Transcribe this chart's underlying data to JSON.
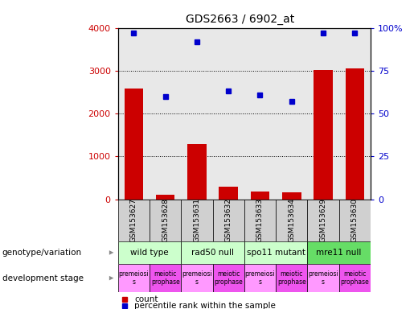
{
  "title": "GDS2663 / 6902_at",
  "samples": [
    "GSM153627",
    "GSM153628",
    "GSM153631",
    "GSM153632",
    "GSM153633",
    "GSM153634",
    "GSM153629",
    "GSM153630"
  ],
  "counts": [
    2580,
    110,
    1290,
    300,
    175,
    155,
    3010,
    3060
  ],
  "percentiles": [
    97,
    60,
    92,
    63,
    61,
    57,
    97,
    97
  ],
  "ylim_left": [
    0,
    4000
  ],
  "ylim_right": [
    0,
    100
  ],
  "yticks_left": [
    0,
    1000,
    2000,
    3000,
    4000
  ],
  "yticks_right": [
    0,
    25,
    50,
    75,
    100
  ],
  "yticklabels_right": [
    "0",
    "25",
    "50",
    "75",
    "100%"
  ],
  "bar_color": "#cc0000",
  "dot_color": "#0000cc",
  "genotype_groups": [
    {
      "label": "wild type",
      "start": 0,
      "end": 2,
      "color": "#ccffcc"
    },
    {
      "label": "rad50 null",
      "start": 2,
      "end": 4,
      "color": "#ccffcc"
    },
    {
      "label": "spo11 mutant",
      "start": 4,
      "end": 6,
      "color": "#ccffcc"
    },
    {
      "label": "mre11 null",
      "start": 6,
      "end": 8,
      "color": "#66dd66"
    }
  ],
  "dev_stage_groups": [
    {
      "label": "premeiosi\ns",
      "start": 0,
      "end": 1,
      "color": "#ff99ff"
    },
    {
      "label": "meiotic\nprophase",
      "start": 1,
      "end": 2,
      "color": "#ee55ee"
    },
    {
      "label": "premeiosi\ns",
      "start": 2,
      "end": 3,
      "color": "#ff99ff"
    },
    {
      "label": "meiotic\nprophase",
      "start": 3,
      "end": 4,
      "color": "#ee55ee"
    },
    {
      "label": "premeiosi\ns",
      "start": 4,
      "end": 5,
      "color": "#ff99ff"
    },
    {
      "label": "meiotic\nprophase",
      "start": 5,
      "end": 6,
      "color": "#ee55ee"
    },
    {
      "label": "premeiosi\ns",
      "start": 6,
      "end": 7,
      "color": "#ff99ff"
    },
    {
      "label": "meiotic\nprophase",
      "start": 7,
      "end": 8,
      "color": "#ee55ee"
    }
  ],
  "left_label_color": "#cc0000",
  "right_label_color": "#0000cc",
  "axis_bg_color": "#e8e8e8",
  "sample_bg_color": "#d0d0d0",
  "grid_color": "#000000",
  "legend_count_color": "#cc0000",
  "legend_dot_color": "#0000cc",
  "arrow_color": "#888888"
}
